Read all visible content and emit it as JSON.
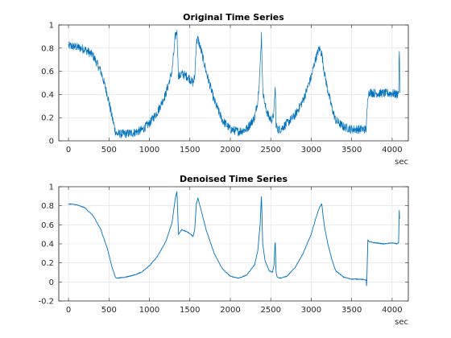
{
  "figure": {
    "background": "#ffffff",
    "series_color": "#0072bd"
  },
  "chart_data": [
    {
      "type": "line",
      "title": "Original Time Series",
      "xlabel": "sec",
      "ylabel": "",
      "xlim": [
        -120,
        4200
      ],
      "ylim": [
        0,
        1
      ],
      "xticks": [
        0,
        500,
        1000,
        1500,
        2000,
        2500,
        3000,
        3500,
        4000
      ],
      "yticks": [
        0,
        0.2,
        0.4,
        0.6,
        0.8,
        1
      ],
      "grid": true,
      "noise": "high",
      "series": [
        {
          "x": [
            0,
            100,
            200,
            300,
            400,
            480,
            540,
            580,
            600,
            700,
            800,
            900,
            1000,
            1100,
            1200,
            1280,
            1320,
            1340,
            1360,
            1400,
            1480,
            1540,
            1560,
            1580,
            1600,
            1650,
            1700,
            1800,
            1900,
            2000,
            2100,
            2200,
            2300,
            2340,
            2370,
            2385,
            2400,
            2430,
            2480,
            2520,
            2540,
            2555,
            2565,
            2580,
            2620,
            2700,
            2800,
            2900,
            3000,
            3050,
            3100,
            3130,
            3160,
            3200,
            3250,
            3300,
            3400,
            3500,
            3600,
            3680,
            3700,
            3720,
            3800,
            3900,
            4000,
            4060,
            4080,
            4090,
            4095
          ],
          "values": [
            0.82,
            0.81,
            0.79,
            0.74,
            0.6,
            0.4,
            0.2,
            0.08,
            0.06,
            0.06,
            0.07,
            0.09,
            0.15,
            0.25,
            0.4,
            0.6,
            0.9,
            0.95,
            0.55,
            0.58,
            0.55,
            0.5,
            0.55,
            0.85,
            0.88,
            0.75,
            0.6,
            0.35,
            0.18,
            0.1,
            0.08,
            0.1,
            0.2,
            0.35,
            0.65,
            0.92,
            0.45,
            0.3,
            0.2,
            0.18,
            0.25,
            0.48,
            0.15,
            0.1,
            0.1,
            0.15,
            0.22,
            0.35,
            0.55,
            0.7,
            0.8,
            0.75,
            0.6,
            0.45,
            0.3,
            0.18,
            0.12,
            0.1,
            0.1,
            0.1,
            0.4,
            0.42,
            0.41,
            0.41,
            0.41,
            0.4,
            0.42,
            0.84,
            0.4
          ]
        }
      ]
    },
    {
      "type": "line",
      "title": "Denoised Time Series",
      "xlabel": "sec",
      "ylabel": "",
      "xlim": [
        -120,
        4200
      ],
      "ylim": [
        -0.2,
        1
      ],
      "xticks": [
        0,
        500,
        1000,
        1500,
        2000,
        2500,
        3000,
        3500,
        4000
      ],
      "yticks": [
        -0.2,
        0,
        0.2,
        0.4,
        0.6,
        0.8,
        1
      ],
      "grid": true,
      "noise": "low",
      "series": [
        {
          "x": [
            0,
            100,
            200,
            300,
            400,
            480,
            540,
            580,
            600,
            700,
            800,
            900,
            1000,
            1100,
            1200,
            1280,
            1320,
            1340,
            1360,
            1400,
            1480,
            1540,
            1560,
            1580,
            1600,
            1650,
            1700,
            1800,
            1900,
            2000,
            2100,
            2200,
            2300,
            2340,
            2370,
            2385,
            2400,
            2430,
            2480,
            2520,
            2540,
            2555,
            2565,
            2580,
            2620,
            2700,
            2800,
            2900,
            3000,
            3050,
            3100,
            3130,
            3160,
            3200,
            3250,
            3300,
            3400,
            3500,
            3600,
            3680,
            3685,
            3700,
            3720,
            3800,
            3900,
            4000,
            4060,
            4080,
            4090,
            4095
          ],
          "values": [
            0.82,
            0.81,
            0.78,
            0.7,
            0.55,
            0.35,
            0.15,
            0.05,
            0.04,
            0.05,
            0.07,
            0.1,
            0.17,
            0.27,
            0.42,
            0.62,
            0.88,
            0.95,
            0.5,
            0.55,
            0.52,
            0.48,
            0.55,
            0.82,
            0.88,
            0.72,
            0.55,
            0.3,
            0.14,
            0.06,
            0.04,
            0.07,
            0.18,
            0.33,
            0.62,
            0.92,
            0.4,
            0.22,
            0.12,
            0.1,
            0.18,
            0.45,
            0.1,
            0.05,
            0.04,
            0.06,
            0.15,
            0.3,
            0.5,
            0.65,
            0.78,
            0.82,
            0.6,
            0.42,
            0.25,
            0.12,
            0.05,
            0.03,
            0.03,
            0.02,
            -0.05,
            0.44,
            0.42,
            0.41,
            0.4,
            0.41,
            0.4,
            0.41,
            0.84,
            0.4
          ]
        }
      ]
    }
  ]
}
